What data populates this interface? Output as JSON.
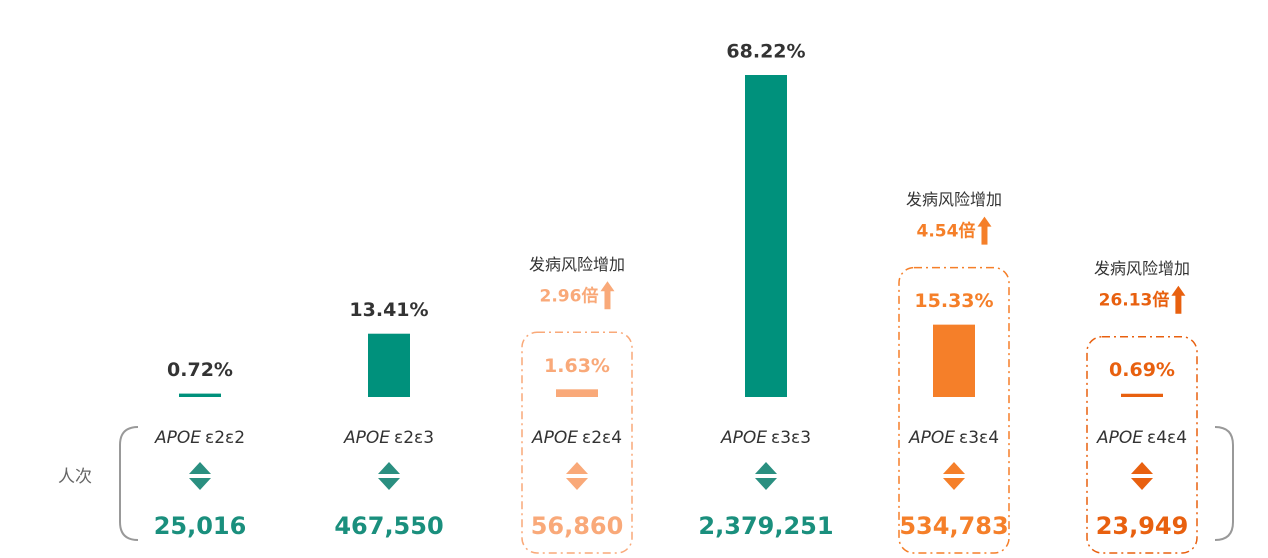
{
  "chart_data": {
    "type": "bar",
    "gene": "APOE",
    "categories": [
      "ε2ε2",
      "ε2ε3",
      "ε2ε4",
      "ε3ε3",
      "ε3ε4",
      "ε4ε4"
    ],
    "values": [
      0.72,
      13.41,
      1.63,
      68.22,
      15.33,
      0.69
    ],
    "value_labels": [
      "0.72%",
      "13.41%",
      "1.63%",
      "68.22%",
      "15.33%",
      "0.69%"
    ],
    "colors": [
      "#00917c",
      "#00917c",
      "#f9a979",
      "#00917c",
      "#f57f29",
      "#e8600f"
    ],
    "count_label": "人次",
    "counts": [
      25016,
      467550,
      56860,
      2379251,
      534783,
      23949
    ],
    "count_labels": [
      "25,016",
      "467,550",
      "56,860",
      "2,379,251",
      "534,783",
      "23,949"
    ],
    "risk_label": "发病风险增加",
    "risk_multipliers": [
      null,
      null,
      2.96,
      null,
      4.54,
      26.13
    ],
    "risk_multiplier_labels": [
      null,
      null,
      "2.96倍",
      null,
      "4.54倍",
      "26.13倍"
    ]
  }
}
